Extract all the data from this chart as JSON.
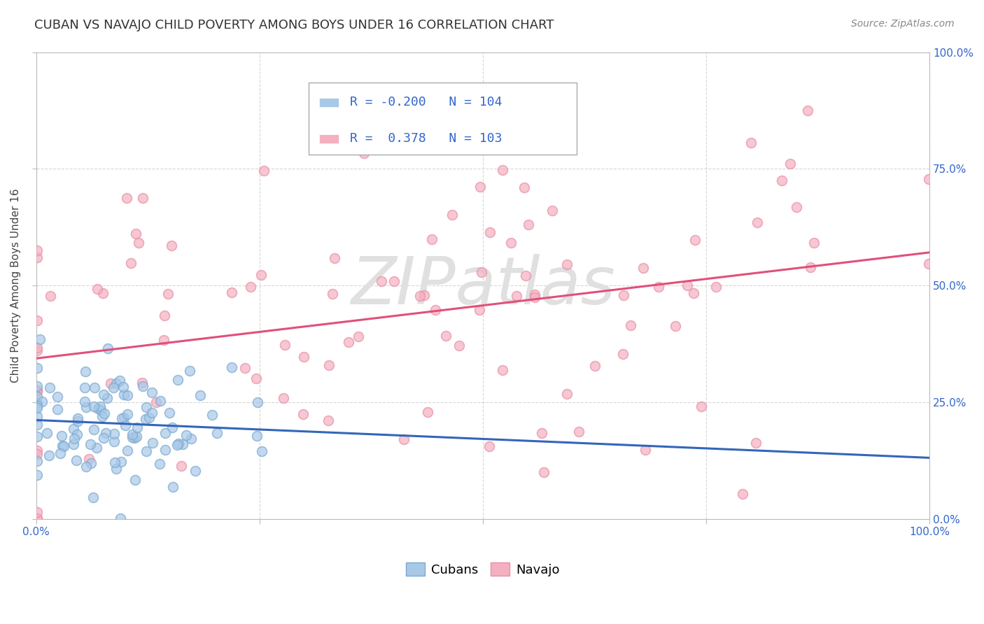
{
  "title": "CUBAN VS NAVAJO CHILD POVERTY AMONG BOYS UNDER 16 CORRELATION CHART",
  "source": "Source: ZipAtlas.com",
  "ylabel": "Child Poverty Among Boys Under 16",
  "cubans_R": -0.2,
  "cubans_N": 104,
  "navajo_R": 0.378,
  "navajo_N": 103,
  "cubans_color": "#a8c8e8",
  "navajo_color": "#f4b0c0",
  "cubans_edge_color": "#7aaad0",
  "navajo_edge_color": "#e890a8",
  "cubans_line_color": "#3366bb",
  "navajo_line_color": "#e0507a",
  "watermark": "ZIPatlas",
  "watermark_color": "#e0e0e0",
  "background_color": "#ffffff",
  "grid_color": "#cccccc",
  "legend_label_cubans": "Cubans",
  "legend_label_navajo": "Navajo",
  "title_fontsize": 13,
  "source_fontsize": 10,
  "axis_label_fontsize": 11,
  "tick_fontsize": 11,
  "legend_fontsize": 13,
  "xlim": [
    0,
    1
  ],
  "ylim": [
    0,
    1
  ],
  "right_tick_color": "#3366cc",
  "xlabel_color": "#3366cc"
}
